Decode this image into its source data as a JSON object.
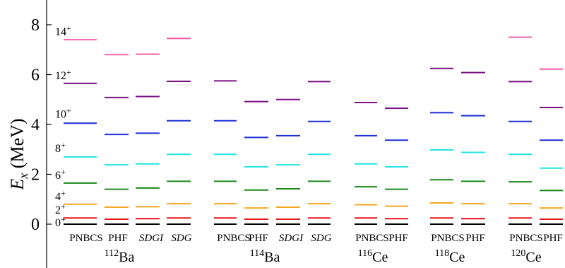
{
  "chart_data": {
    "type": "level-scheme",
    "ylabel": "E_x (MeV)",
    "ylabel_main": "E",
    "ylabel_sub": "x",
    "ylabel_unit": " (MeV)",
    "ylim": [
      -0.8,
      9.0
    ],
    "yticks": [
      "0",
      "2",
      "4",
      "6",
      "8"
    ],
    "ytick_values": [
      0,
      2,
      4,
      6,
      8
    ],
    "spin_labels": [
      {
        "base": "0",
        "sup": "+",
        "value": 0
      },
      {
        "base": "2",
        "sup": "+",
        "value": 0.25
      },
      {
        "base": "4",
        "sup": "+",
        "value": 0.8
      },
      {
        "base": "6",
        "sup": "+",
        "value": 1.65
      },
      {
        "base": "8",
        "sup": "+",
        "value": 2.72
      },
      {
        "base": "10",
        "sup": "+",
        "value": 4.1
      },
      {
        "base": "12",
        "sup": "+",
        "value": 5.65
      },
      {
        "base": "14",
        "sup": "+",
        "value": 7.4
      }
    ],
    "states": [
      "0+",
      "2+",
      "4+",
      "6+",
      "8+",
      "10+",
      "12+",
      "14+"
    ],
    "state_colors": [
      "#000000",
      "#e8141b",
      "#f5a623",
      "#1a8a1a",
      "#22e3e3",
      "#1f2fd6",
      "#7a1282",
      "#f060a8"
    ],
    "groups": [
      {
        "nucleus_mass": "112",
        "nucleus_symbol": "Ba",
        "columns": [
          {
            "method": "PNBCS",
            "italic": false,
            "levels": [
              0,
              0.25,
              0.8,
              1.65,
              2.7,
              4.05,
              5.65,
              7.4
            ]
          },
          {
            "method": "PHF",
            "italic": false,
            "levels": [
              0,
              0.2,
              0.68,
              1.4,
              2.38,
              3.6,
              5.08,
              6.8
            ]
          },
          {
            "method": "SDGI",
            "italic": true,
            "levels": [
              0,
              0.22,
              0.7,
              1.45,
              2.42,
              3.65,
              5.12,
              6.82
            ]
          },
          {
            "method": "SDG",
            "italic": true,
            "levels": [
              0,
              0.25,
              0.82,
              1.72,
              2.8,
              4.15,
              5.73,
              7.45
            ]
          }
        ]
      },
      {
        "nucleus_mass": "114",
        "nucleus_symbol": "Ba",
        "columns": [
          {
            "method": "PNBCS",
            "italic": false,
            "levels": [
              0,
              0.25,
              0.82,
              1.72,
              2.8,
              4.15,
              5.75,
              null
            ]
          },
          {
            "method": "PHF",
            "italic": false,
            "levels": [
              0,
              0.2,
              0.65,
              1.37,
              2.3,
              3.48,
              4.92,
              null
            ]
          },
          {
            "method": "SDGI",
            "italic": true,
            "levels": [
              0,
              0.2,
              0.68,
              1.42,
              2.38,
              3.55,
              5.0,
              null
            ]
          },
          {
            "method": "SDG",
            "italic": true,
            "levels": [
              0,
              0.25,
              0.82,
              1.72,
              2.8,
              4.12,
              5.72,
              null
            ]
          }
        ]
      },
      {
        "nucleus_mass": "116",
        "nucleus_symbol": "Ce",
        "columns": [
          {
            "method": "PNBCS",
            "italic": false,
            "levels": [
              0,
              0.25,
              0.78,
              1.5,
              2.42,
              3.55,
              4.88,
              null
            ]
          },
          {
            "method": "PHF",
            "italic": false,
            "levels": [
              0,
              0.22,
              0.72,
              1.4,
              2.3,
              3.37,
              4.65,
              null
            ]
          }
        ]
      },
      {
        "nucleus_mass": "118",
        "nucleus_symbol": "Ce",
        "columns": [
          {
            "method": "PNBCS",
            "italic": false,
            "levels": [
              0,
              0.25,
              0.85,
              1.78,
              2.98,
              4.47,
              6.25,
              null
            ]
          },
          {
            "method": "PHF",
            "italic": false,
            "levels": [
              0,
              0.22,
              0.82,
              1.72,
              2.88,
              4.35,
              6.08,
              null
            ]
          }
        ]
      },
      {
        "nucleus_mass": "120",
        "nucleus_symbol": "Ce",
        "columns": [
          {
            "method": "PNBCS",
            "italic": false,
            "levels": [
              0,
              0.25,
              0.82,
              1.7,
              2.8,
              4.12,
              5.72,
              7.5
            ]
          },
          {
            "method": "PHF",
            "italic": false,
            "levels": [
              0,
              0.2,
              0.65,
              1.35,
              2.25,
              3.37,
              4.68,
              6.22
            ]
          }
        ]
      }
    ]
  }
}
